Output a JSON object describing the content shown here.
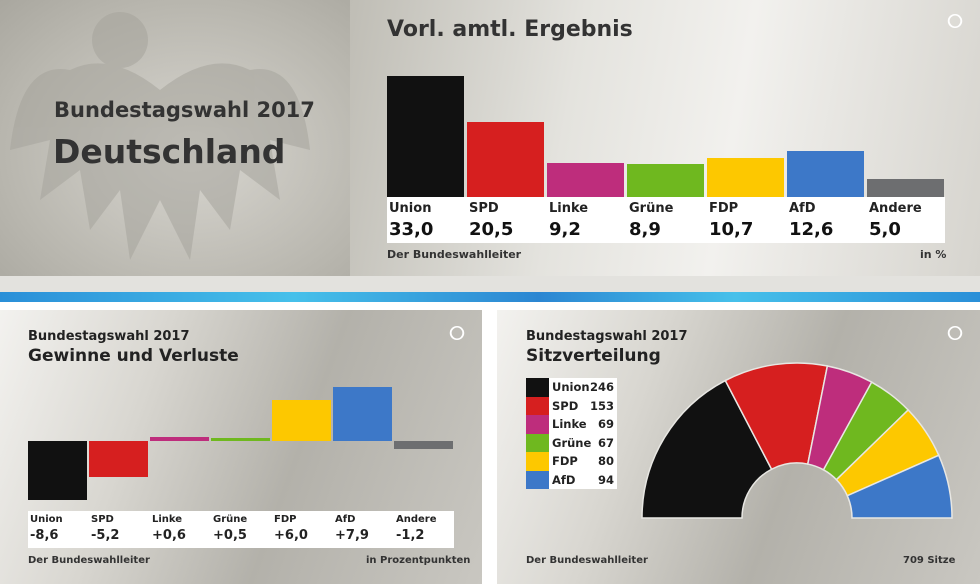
{
  "header": {
    "subtitle": "Bundestagswahl 2017",
    "title": "Deutschland"
  },
  "chart_data": [
    {
      "type": "bar",
      "title": "Vorl. amtl. Ergebnis",
      "categories": [
        "Union",
        "SPD",
        "Linke",
        "Grüne",
        "FDP",
        "AfD",
        "Andere"
      ],
      "values": [
        33.0,
        20.5,
        9.2,
        8.9,
        10.7,
        12.6,
        5.0
      ],
      "value_labels": [
        "33,0",
        "20,5",
        "9,2",
        "8,9",
        "10,7",
        "12,6",
        "5,0"
      ],
      "colors": [
        "#111111",
        "#d61f1f",
        "#be2d7c",
        "#6fb81f",
        "#fdc800",
        "#3d78c8",
        "#6d6e70"
      ],
      "source": "Der Bundeswahlleiter",
      "unit": "in %",
      "ylim": [
        0,
        33
      ]
    },
    {
      "type": "bar",
      "supertitle": "Bundestagswahl 2017",
      "title": "Gewinne und Verluste",
      "categories": [
        "Union",
        "SPD",
        "Linke",
        "Grüne",
        "FDP",
        "AfD",
        "Andere"
      ],
      "values": [
        -8.6,
        -5.2,
        0.6,
        0.5,
        6.0,
        7.9,
        -1.2
      ],
      "value_labels": [
        "-8,6",
        "-5,2",
        "+0,6",
        "+0,5",
        "+6,0",
        "+7,9",
        "-1,2"
      ],
      "colors": [
        "#111111",
        "#d61f1f",
        "#be2d7c",
        "#6fb81f",
        "#fdc800",
        "#3d78c8",
        "#6d6e70"
      ],
      "source": "Der Bundeswahlleiter",
      "unit": "in Prozentpunkten"
    },
    {
      "type": "pie",
      "subtype": "semicircle",
      "supertitle": "Bundestagswahl 2017",
      "title": "Sitzverteilung",
      "categories": [
        "Union",
        "SPD",
        "Linke",
        "Grüne",
        "FDP",
        "AfD"
      ],
      "values": [
        246,
        153,
        69,
        67,
        80,
        94
      ],
      "colors": [
        "#111111",
        "#d61f1f",
        "#be2d7c",
        "#6fb81f",
        "#fdc800",
        "#3d78c8"
      ],
      "source": "Der Bundeswahlleiter",
      "total_label": "709 Sitze"
    }
  ]
}
